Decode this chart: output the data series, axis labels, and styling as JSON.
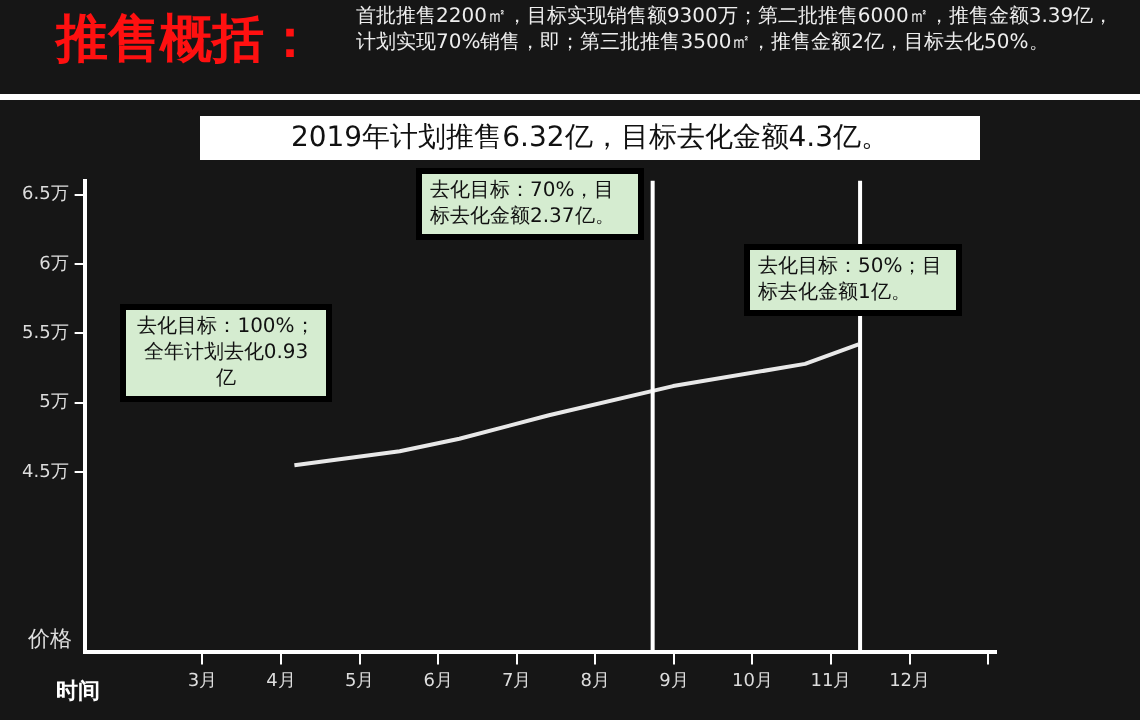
{
  "chart_data": {
    "type": "line",
    "title": "推售概括：",
    "subtitle": "首批推售2200㎡，目标实现销售额9300万；第二批推售6000㎡，推售金额3.39亿，计划实现70%销售，即；第三批推售3500㎡，推售金额2亿，目标去化50%。",
    "annotations": [
      "2019年计划推售6.32亿，目标去化金额4.3亿。",
      "去化目标：100%；全年计划去化0.93亿",
      "去化目标：70%，目标去化金额2.37亿。",
      "去化目标：50%；目标去化金额1亿。"
    ],
    "xlabel": "时间",
    "ylabel": "价格",
    "series": [
      {
        "color": "#e8e8e8",
        "x": [
          4.17,
          5.51,
          6.27,
          7.41,
          8.99,
          10.67,
          11.35
        ],
        "values": [
          4.55,
          4.65,
          4.74,
          4.91,
          5.12,
          5.28,
          5.42
        ]
      }
    ],
    "xlim": [
      1.5,
      13.1
    ],
    "xticks": [
      {
        "value": 3,
        "label": "3月"
      },
      {
        "value": 4,
        "label": "4月"
      },
      {
        "value": 5,
        "label": "5月"
      },
      {
        "value": 6,
        "label": "6月"
      },
      {
        "value": 7,
        "label": "7月"
      },
      {
        "value": 8,
        "label": "8月"
      },
      {
        "value": 9,
        "label": "9月"
      },
      {
        "value": 10,
        "label": "10月"
      },
      {
        "value": 11,
        "label": "11月"
      },
      {
        "value": 12,
        "label": "12月"
      },
      {
        "value": 13,
        "label": null
      }
    ],
    "ylim": [
      3.2,
      6.6
    ],
    "yticks": [
      {
        "value": 4.5,
        "label": "4.5万"
      },
      {
        "value": 5,
        "label": "5万"
      },
      {
        "value": 5.5,
        "label": "5.5万"
      },
      {
        "value": 6,
        "label": "6万"
      },
      {
        "value": 6.5,
        "label": "6.5万"
      }
    ],
    "ref_lines": [
      {
        "axis": "x",
        "value": 8.73,
        "color": "#ffffff"
      },
      {
        "axis": "x",
        "value": 11.37,
        "color": "#ffffff"
      }
    ],
    "grid": false,
    "legend": false,
    "marker": "none",
    "line_style": "solid"
  }
}
